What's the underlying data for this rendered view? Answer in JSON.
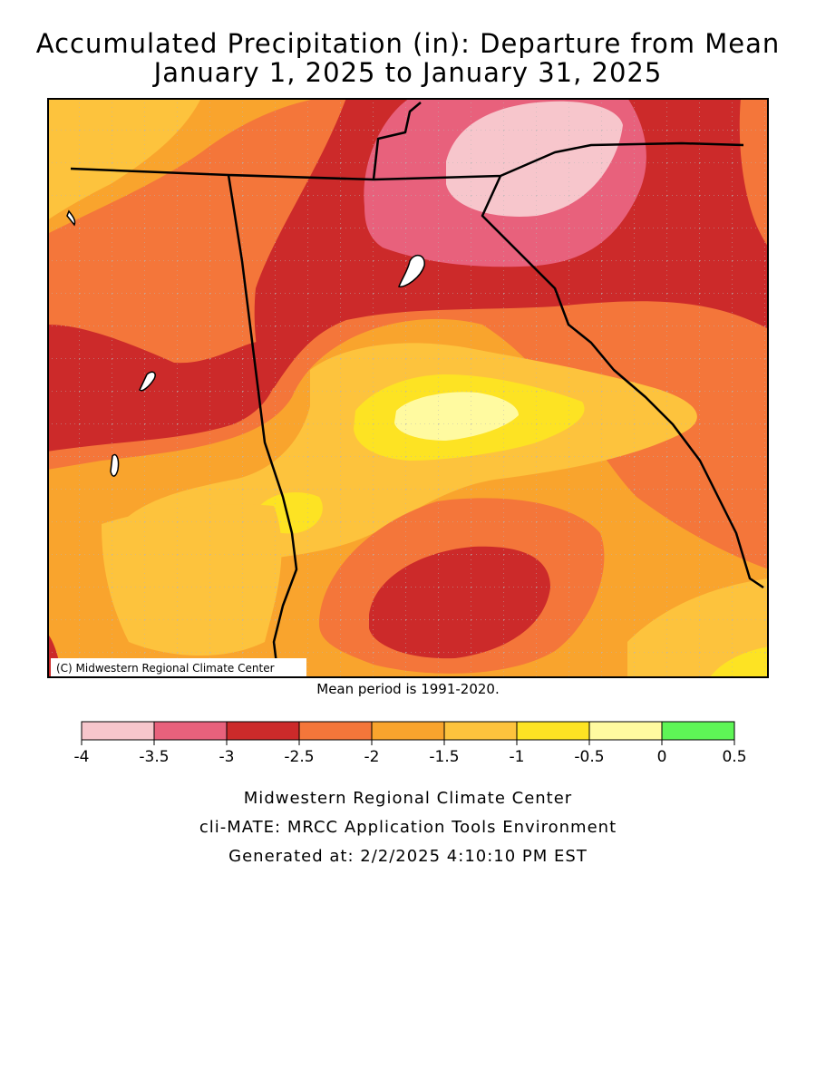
{
  "title": {
    "line1": "Accumulated Precipitation (in): Departure from Mean",
    "line2": "January 1, 2025 to January 31, 2025"
  },
  "map": {
    "copyright": "(C) Midwestern Regional Climate Center",
    "mean_period_note": "Mean period is 1991-2020."
  },
  "legend": {
    "bins": [
      {
        "from": -4,
        "to": -3.5,
        "color": "#f7c6cc"
      },
      {
        "from": -3.5,
        "to": -3,
        "color": "#e8617c"
      },
      {
        "from": -3,
        "to": -2.5,
        "color": "#cc2a2a"
      },
      {
        "from": -2.5,
        "to": -2,
        "color": "#f4763a"
      },
      {
        "from": -2,
        "to": -1.5,
        "color": "#f9a42d"
      },
      {
        "from": -1.5,
        "to": -1,
        "color": "#fdc33d"
      },
      {
        "from": -1,
        "to": -0.5,
        "color": "#fde323"
      },
      {
        "from": -0.5,
        "to": 0,
        "color": "#fffaa0"
      },
      {
        "from": 0,
        "to": 0.5,
        "color": "#5ef556"
      }
    ],
    "tick_labels": [
      "-4",
      "-3.5",
      "-3",
      "-2.5",
      "-2",
      "-1.5",
      "-1",
      "-0.5",
      "0",
      "0.5"
    ]
  },
  "footer": {
    "line1": "Midwestern Regional Climate Center",
    "line2": "cli-MATE: MRCC Application Tools Environment",
    "line3": "Generated at: 2/2/2025 4:10:10 PM EST"
  }
}
